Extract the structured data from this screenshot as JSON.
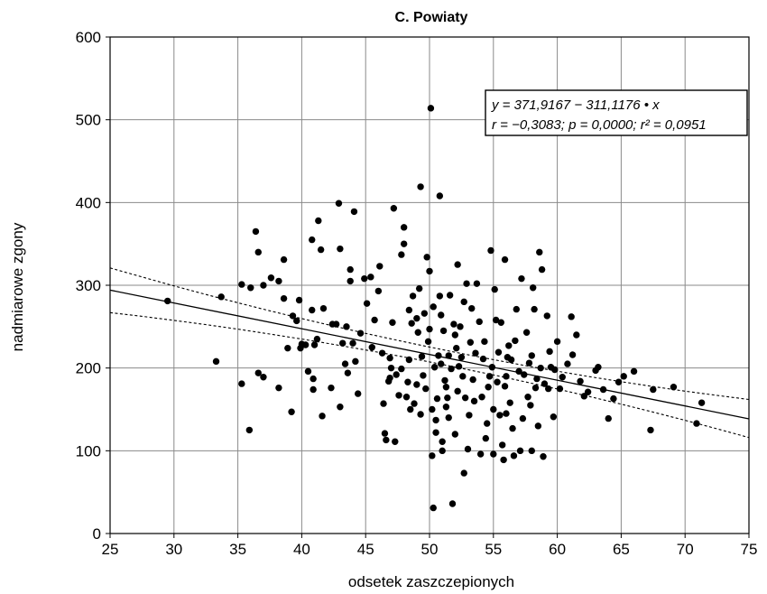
{
  "chart_data": {
    "type": "scatter",
    "title": "C. Powiaty",
    "xlabel": "odsetek zaszczepionych",
    "ylabel": "nadmiarowe zgony",
    "xlim": [
      25,
      75
    ],
    "ylim": [
      0,
      600
    ],
    "xticks": [
      25,
      30,
      35,
      40,
      45,
      50,
      55,
      60,
      65,
      70,
      75
    ],
    "yticks": [
      0,
      100,
      200,
      300,
      400,
      500,
      600
    ],
    "grid": true,
    "legend": "top-right",
    "regression": {
      "intercept": 371.9167,
      "slope": -311.1176,
      "x_scale": 0.01,
      "equation_line1": "y = 371,9167 − 311,1176 • x",
      "equation_line2": "r = −0,3083; p = 0,0000; r² = 0,0951",
      "ci_at_25": [
        267,
        321
      ],
      "ci_at_75": [
        116,
        162
      ]
    },
    "points": [
      [
        29.5,
        281
      ],
      [
        33.3,
        208
      ],
      [
        33.7,
        286
      ],
      [
        35.3,
        181
      ],
      [
        35.3,
        301
      ],
      [
        35.9,
        125
      ],
      [
        36.0,
        297
      ],
      [
        36.4,
        365
      ],
      [
        36.6,
        340
      ],
      [
        36.6,
        194
      ],
      [
        37.0,
        189
      ],
      [
        37.0,
        300
      ],
      [
        37.6,
        309
      ],
      [
        38.2,
        305
      ],
      [
        38.2,
        176
      ],
      [
        38.6,
        331
      ],
      [
        38.6,
        284
      ],
      [
        38.9,
        224
      ],
      [
        39.2,
        147
      ],
      [
        39.3,
        263
      ],
      [
        39.6,
        257
      ],
      [
        39.8,
        282
      ],
      [
        39.9,
        224
      ],
      [
        40.0,
        229
      ],
      [
        40.3,
        228
      ],
      [
        40.5,
        196
      ],
      [
        40.8,
        270
      ],
      [
        40.8,
        355
      ],
      [
        40.9,
        174
      ],
      [
        40.9,
        187
      ],
      [
        41.0,
        228
      ],
      [
        41.2,
        235
      ],
      [
        41.3,
        378
      ],
      [
        41.5,
        343
      ],
      [
        41.6,
        142
      ],
      [
        41.7,
        272
      ],
      [
        42.3,
        176
      ],
      [
        42.4,
        253
      ],
      [
        42.7,
        253
      ],
      [
        42.9,
        399
      ],
      [
        43.0,
        344
      ],
      [
        43.0,
        153
      ],
      [
        43.2,
        230
      ],
      [
        43.4,
        205
      ],
      [
        43.5,
        250
      ],
      [
        43.6,
        194
      ],
      [
        43.8,
        305
      ],
      [
        43.8,
        319
      ],
      [
        44.1,
        389
      ],
      [
        44.2,
        208
      ],
      [
        44.4,
        169
      ],
      [
        44.6,
        242
      ],
      [
        44.9,
        308
      ],
      [
        45.1,
        278
      ],
      [
        45.4,
        310
      ],
      [
        45.5,
        225
      ],
      [
        45.7,
        258
      ],
      [
        46.0,
        293
      ],
      [
        46.1,
        323
      ],
      [
        46.3,
        218
      ],
      [
        46.4,
        157
      ],
      [
        46.5,
        121
      ],
      [
        46.6,
        113
      ],
      [
        46.8,
        184
      ],
      [
        46.9,
        212
      ],
      [
        47.0,
        200
      ],
      [
        47.1,
        255
      ],
      [
        47.2,
        393
      ],
      [
        47.3,
        111
      ],
      [
        47.4,
        192
      ],
      [
        47.6,
        167
      ],
      [
        47.8,
        337
      ],
      [
        47.8,
        199
      ],
      [
        48.0,
        350
      ],
      [
        48.0,
        370
      ],
      [
        48.2,
        165
      ],
      [
        48.3,
        183
      ],
      [
        48.4,
        270
      ],
      [
        48.5,
        150
      ],
      [
        48.6,
        254
      ],
      [
        48.7,
        287
      ],
      [
        48.8,
        157
      ],
      [
        49.0,
        260
      ],
      [
        49.1,
        243
      ],
      [
        49.2,
        296
      ],
      [
        49.3,
        419
      ],
      [
        49.3,
        144
      ],
      [
        49.4,
        214
      ],
      [
        49.5,
        191
      ],
      [
        49.6,
        266
      ],
      [
        49.7,
        175
      ],
      [
        49.8,
        334
      ],
      [
        49.9,
        232
      ],
      [
        50.0,
        317
      ],
      [
        50.0,
        247
      ],
      [
        50.1,
        514
      ],
      [
        50.2,
        150
      ],
      [
        50.2,
        94
      ],
      [
        50.3,
        31
      ],
      [
        50.3,
        274
      ],
      [
        50.4,
        201
      ],
      [
        50.5,
        137
      ],
      [
        50.6,
        163
      ],
      [
        50.7,
        215
      ],
      [
        50.8,
        408
      ],
      [
        50.8,
        287
      ],
      [
        50.9,
        264
      ],
      [
        51.0,
        111
      ],
      [
        51.0,
        100
      ],
      [
        51.1,
        245
      ],
      [
        51.2,
        185
      ],
      [
        51.3,
        177
      ],
      [
        51.3,
        153
      ],
      [
        51.4,
        164
      ],
      [
        51.5,
        215
      ],
      [
        51.6,
        288
      ],
      [
        51.7,
        199
      ],
      [
        51.8,
        36
      ],
      [
        51.9,
        253
      ],
      [
        52.0,
        240
      ],
      [
        52.1,
        224
      ],
      [
        52.2,
        172
      ],
      [
        52.2,
        325
      ],
      [
        52.3,
        202
      ],
      [
        52.5,
        213
      ],
      [
        52.6,
        190
      ],
      [
        52.7,
        280
      ],
      [
        52.7,
        73
      ],
      [
        52.8,
        164
      ],
      [
        52.9,
        302
      ],
      [
        53.0,
        102
      ],
      [
        53.1,
        143
      ],
      [
        53.2,
        231
      ],
      [
        53.4,
        186
      ],
      [
        53.6,
        218
      ],
      [
        53.7,
        302
      ],
      [
        53.9,
        256
      ],
      [
        54.0,
        96
      ],
      [
        54.1,
        165
      ],
      [
        54.2,
        211
      ],
      [
        54.3,
        232
      ],
      [
        54.5,
        133
      ],
      [
        54.6,
        177
      ],
      [
        54.8,
        342
      ],
      [
        54.9,
        201
      ],
      [
        55.0,
        96
      ],
      [
        55.1,
        295
      ],
      [
        55.2,
        258
      ],
      [
        55.3,
        183
      ],
      [
        55.4,
        219
      ],
      [
        55.5,
        143
      ],
      [
        55.6,
        255
      ],
      [
        55.7,
        107
      ],
      [
        55.8,
        89
      ],
      [
        55.9,
        331
      ],
      [
        56.0,
        190
      ],
      [
        56.1,
        213
      ],
      [
        56.2,
        227
      ],
      [
        56.3,
        158
      ],
      [
        56.5,
        127
      ],
      [
        56.6,
        94
      ],
      [
        56.7,
        233
      ],
      [
        56.8,
        271
      ],
      [
        57.0,
        196
      ],
      [
        57.1,
        100
      ],
      [
        57.2,
        308
      ],
      [
        57.3,
        139
      ],
      [
        57.4,
        192
      ],
      [
        57.6,
        243
      ],
      [
        57.8,
        206
      ],
      [
        57.9,
        155
      ],
      [
        58.0,
        100
      ],
      [
        58.1,
        297
      ],
      [
        58.2,
        271
      ],
      [
        58.3,
        176
      ],
      [
        58.4,
        187
      ],
      [
        58.5,
        130
      ],
      [
        58.6,
        340
      ],
      [
        58.7,
        200
      ],
      [
        58.8,
        319
      ],
      [
        58.9,
        93
      ],
      [
        59.0,
        181
      ],
      [
        59.2,
        263
      ],
      [
        59.4,
        220
      ],
      [
        59.5,
        201
      ],
      [
        59.7,
        141
      ],
      [
        59.8,
        198
      ],
      [
        60.0,
        232
      ],
      [
        60.2,
        175
      ],
      [
        60.4,
        189
      ],
      [
        60.8,
        205
      ],
      [
        61.1,
        262
      ],
      [
        61.2,
        216
      ],
      [
        61.5,
        240
      ],
      [
        61.8,
        184
      ],
      [
        62.1,
        166
      ],
      [
        62.4,
        171
      ],
      [
        63.0,
        197
      ],
      [
        63.2,
        201
      ],
      [
        63.6,
        174
      ],
      [
        64.0,
        139
      ],
      [
        64.4,
        163
      ],
      [
        64.8,
        183
      ],
      [
        65.2,
        190
      ],
      [
        66.0,
        196
      ],
      [
        67.3,
        125
      ],
      [
        67.5,
        174
      ],
      [
        69.1,
        177
      ],
      [
        70.9,
        133
      ],
      [
        71.3,
        158
      ],
      [
        44.0,
        230
      ],
      [
        52.4,
        250
      ],
      [
        53.5,
        160
      ],
      [
        56.4,
        210
      ],
      [
        57.7,
        165
      ],
      [
        50.9,
        205
      ],
      [
        54.7,
        190
      ],
      [
        55.9,
        178
      ],
      [
        51.5,
        140
      ],
      [
        53.3,
        272
      ],
      [
        48.4,
        210
      ],
      [
        46.9,
        188
      ],
      [
        49.0,
        180
      ],
      [
        55.0,
        150
      ],
      [
        58.0,
        215
      ],
      [
        52.0,
        120
      ],
      [
        54.4,
        115
      ],
      [
        50.5,
        122
      ],
      [
        56.0,
        145
      ],
      [
        59.3,
        175
      ]
    ]
  }
}
